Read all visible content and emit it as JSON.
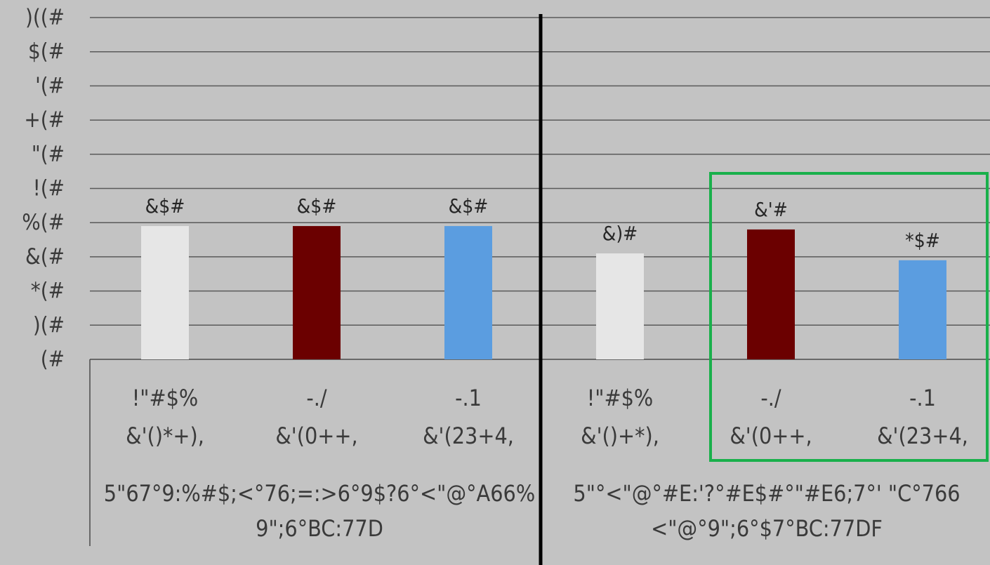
{
  "chart_data": {
    "type": "bar",
    "ylim": [
      0,
      100
    ],
    "y_ticks": [
      "(#",
      ")(#",
      "*(#",
      "&(#",
      "%(#",
      "!(#",
      "\"(#",
      "+(#",
      "'(#",
      "$(#",
      ")((#"
    ],
    "grid": true,
    "colors": [
      "#e6e6e6",
      "#6b0000",
      "#5b9de0"
    ],
    "groups": [
      {
        "label_lines": [
          "5\"67°9:%#$;<°76;=:>6°9$?6°<\"@°A66%",
          "9\";6°BC:77D"
        ],
        "bars": [
          {
            "label_lines": [
              "!\"#$%",
              "&'()*+),"
            ],
            "value": 39,
            "value_label": "&$#"
          },
          {
            "label_lines": [
              "-./",
              "&'(0++,"
            ],
            "value": 39,
            "value_label": "&$#"
          },
          {
            "label_lines": [
              "-.1",
              "&'(23+4,"
            ],
            "value": 39,
            "value_label": "&$#"
          }
        ]
      },
      {
        "label_lines": [
          "5\"°<\"@°#E:'?°#E$#°\"#E6;7°' \"C°766",
          "<\"@°9\";6°$7°BC:77DF"
        ],
        "bars": [
          {
            "label_lines": [
              "!\"#$%",
              "&'()+*),"
            ],
            "value": 31,
            "value_label": "&)#"
          },
          {
            "label_lines": [
              "-./",
              "&'(0++,"
            ],
            "value": 38,
            "value_label": "&'#"
          },
          {
            "label_lines": [
              "-.1",
              "&'(23+4,"
            ],
            "value": 29,
            "value_label": "*$#"
          }
        ]
      }
    ],
    "highlight": "group 2, bars 2-3 (green outline)"
  }
}
